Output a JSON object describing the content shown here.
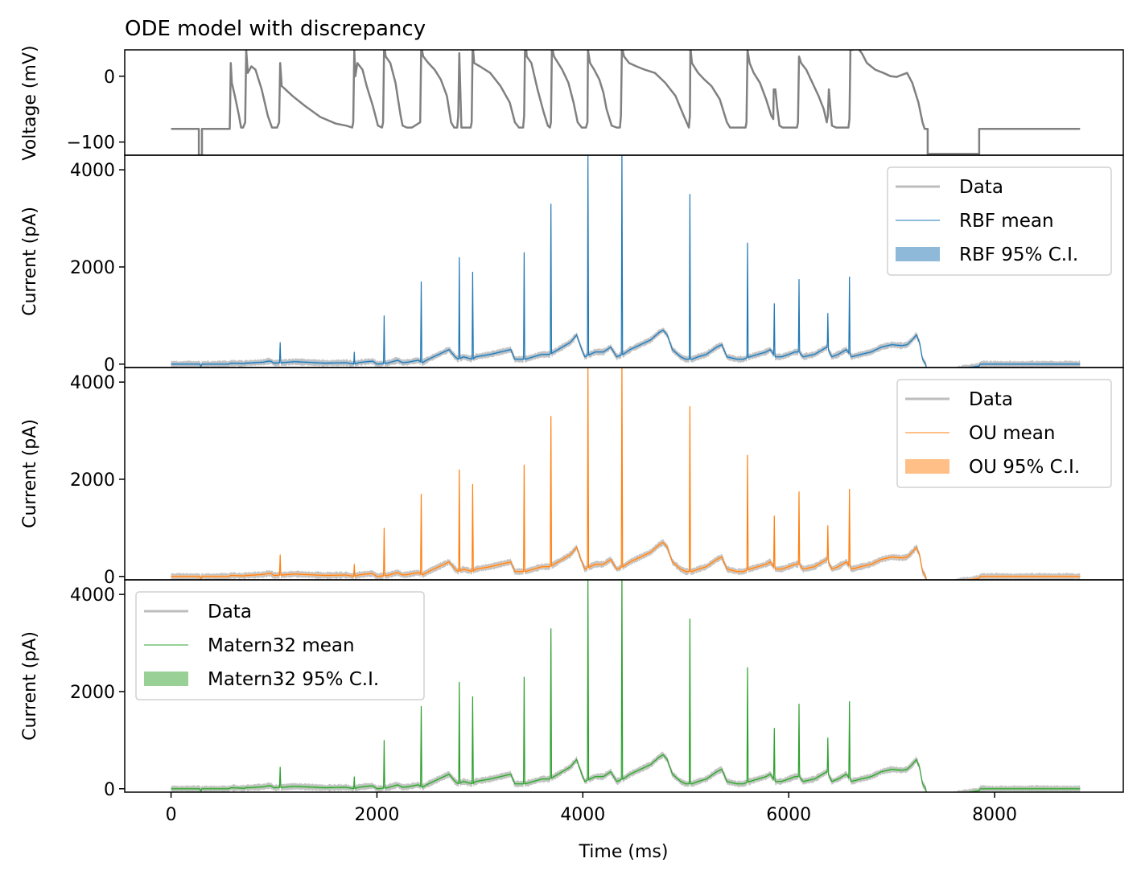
{
  "chart_data": [
    {
      "type": "line",
      "title": "ODE model with discrepancy",
      "xlabel": "",
      "ylabel": "Voltage (mV)",
      "xlim": [
        -450,
        9250
      ],
      "ylim": [
        -120,
        40
      ],
      "yticks": [
        0,
        -100
      ],
      "ytick_labels": [
        "0",
        "−100"
      ],
      "series": [
        {
          "color": "#808080",
          "points": [
            [
              0,
              -80
            ],
            [
              270,
              -80
            ],
            [
              270,
              -120
            ],
            [
              300,
              -120
            ],
            [
              300,
              -80
            ],
            [
              570,
              -80
            ],
            [
              575,
              -40
            ],
            [
              580,
              20
            ],
            [
              590,
              -10
            ],
            [
              620,
              -30
            ],
            [
              660,
              -60
            ],
            [
              680,
              -78
            ],
            [
              700,
              -78
            ],
            [
              720,
              -70
            ],
            [
              730,
              40
            ],
            [
              745,
              5
            ],
            [
              780,
              15
            ],
            [
              820,
              10
            ],
            [
              880,
              -20
            ],
            [
              940,
              -60
            ],
            [
              980,
              -78
            ],
            [
              1030,
              -78
            ],
            [
              1050,
              -70
            ],
            [
              1060,
              20
            ],
            [
              1075,
              -15
            ],
            [
              1110,
              -20
            ],
            [
              1180,
              -30
            ],
            [
              1300,
              -45
            ],
            [
              1450,
              -62
            ],
            [
              1600,
              -72
            ],
            [
              1700,
              -75
            ],
            [
              1760,
              -78
            ],
            [
              1770,
              -70
            ],
            [
              1780,
              40
            ],
            [
              1790,
              0
            ],
            [
              1810,
              20
            ],
            [
              1860,
              10
            ],
            [
              1900,
              -15
            ],
            [
              1960,
              -45
            ],
            [
              2010,
              -75
            ],
            [
              2050,
              -78
            ],
            [
              2060,
              -70
            ],
            [
              2070,
              50
            ],
            [
              2085,
              30
            ],
            [
              2130,
              20
            ],
            [
              2180,
              -10
            ],
            [
              2210,
              -40
            ],
            [
              2230,
              -60
            ],
            [
              2250,
              -75
            ],
            [
              2290,
              -78
            ],
            [
              2340,
              -78
            ],
            [
              2370,
              -75
            ],
            [
              2420,
              -70
            ],
            [
              2430,
              45
            ],
            [
              2450,
              30
            ],
            [
              2500,
              20
            ],
            [
              2560,
              10
            ],
            [
              2620,
              -5
            ],
            [
              2680,
              -30
            ],
            [
              2720,
              -70
            ],
            [
              2750,
              -78
            ],
            [
              2780,
              -78
            ],
            [
              2790,
              -60
            ],
            [
              2800,
              35
            ],
            [
              2820,
              -78
            ],
            [
              2910,
              -78
            ],
            [
              2920,
              -70
            ],
            [
              2930,
              50
            ],
            [
              2945,
              20
            ],
            [
              3000,
              15
            ],
            [
              3100,
              5
            ],
            [
              3200,
              -15
            ],
            [
              3290,
              -40
            ],
            [
              3340,
              -70
            ],
            [
              3380,
              -78
            ],
            [
              3420,
              -78
            ],
            [
              3430,
              -60
            ],
            [
              3440,
              68
            ],
            [
              3455,
              30
            ],
            [
              3500,
              20
            ],
            [
              3560,
              -20
            ],
            [
              3620,
              -55
            ],
            [
              3660,
              -75
            ],
            [
              3680,
              -78
            ],
            [
              3690,
              -70
            ],
            [
              3700,
              45
            ],
            [
              3720,
              30
            ],
            [
              3800,
              10
            ],
            [
              3860,
              -10
            ],
            [
              3910,
              -40
            ],
            [
              3950,
              -70
            ],
            [
              3990,
              -78
            ],
            [
              4030,
              -78
            ],
            [
              4045,
              -70
            ],
            [
              4050,
              40
            ],
            [
              4070,
              20
            ],
            [
              4110,
              10
            ],
            [
              4160,
              -5
            ],
            [
              4200,
              -25
            ],
            [
              4230,
              -50
            ],
            [
              4260,
              -65
            ],
            [
              4280,
              -75
            ],
            [
              4330,
              -78
            ],
            [
              4360,
              -78
            ],
            [
              4370,
              -60
            ],
            [
              4380,
              45
            ],
            [
              4400,
              30
            ],
            [
              4450,
              20
            ],
            [
              4520,
              15
            ],
            [
              4600,
              10
            ],
            [
              4700,
              5
            ],
            [
              4800,
              -10
            ],
            [
              4900,
              -30
            ],
            [
              4980,
              -60
            ],
            [
              5030,
              -78
            ],
            [
              5040,
              -60
            ],
            [
              5045,
              45
            ],
            [
              5060,
              20
            ],
            [
              5120,
              5
            ],
            [
              5180,
              -5
            ],
            [
              5250,
              -15
            ],
            [
              5330,
              -35
            ],
            [
              5400,
              -70
            ],
            [
              5430,
              -78
            ],
            [
              5580,
              -78
            ],
            [
              5590,
              -70
            ],
            [
              5600,
              40
            ],
            [
              5620,
              20
            ],
            [
              5660,
              5
            ],
            [
              5720,
              -10
            ],
            [
              5780,
              -35
            ],
            [
              5830,
              -60
            ],
            [
              5850,
              -65
            ],
            [
              5855,
              -20
            ],
            [
              5870,
              -20
            ],
            [
              5890,
              -50
            ],
            [
              5910,
              -75
            ],
            [
              5940,
              -78
            ],
            [
              6080,
              -78
            ],
            [
              6090,
              -70
            ],
            [
              6100,
              30
            ],
            [
              6120,
              20
            ],
            [
              6170,
              10
            ],
            [
              6230,
              -10
            ],
            [
              6290,
              -30
            ],
            [
              6340,
              -50
            ],
            [
              6370,
              -70
            ],
            [
              6380,
              -60
            ],
            [
              6390,
              -20
            ],
            [
              6400,
              -40
            ],
            [
              6420,
              -75
            ],
            [
              6460,
              -78
            ],
            [
              6580,
              -78
            ],
            [
              6590,
              -65
            ],
            [
              6600,
              50
            ],
            [
              6620,
              40
            ],
            [
              6660,
              45
            ],
            [
              6710,
              35
            ],
            [
              6760,
              20
            ],
            [
              6840,
              10
            ],
            [
              6920,
              5
            ],
            [
              6990,
              0
            ],
            [
              7050,
              -1
            ],
            [
              7100,
              2
            ],
            [
              7150,
              5
            ],
            [
              7200,
              -10
            ],
            [
              7260,
              -40
            ],
            [
              7300,
              -70
            ],
            [
              7320,
              -80
            ],
            [
              7350,
              -80
            ],
            [
              7350,
              -118
            ],
            [
              7850,
              -118
            ],
            [
              7850,
              -80
            ],
            [
              8830,
              -80
            ]
          ]
        }
      ]
    },
    {
      "type": "line",
      "xlabel": "",
      "ylabel": "Current (pA)",
      "xlim": [
        -450,
        9250
      ],
      "ylim": [
        -70,
        4300
      ],
      "yticks": [
        0,
        2000,
        4000
      ],
      "ytick_labels": [
        "0",
        "2000",
        "4000"
      ],
      "legend_position": "upper-right",
      "series": [
        {
          "name": "Data",
          "color": "#bdbdbd"
        },
        {
          "name": "RBF mean",
          "color": "#1f77b4"
        },
        {
          "name": "RBF 95% C.I.",
          "color": "#8fb9d9"
        }
      ]
    },
    {
      "type": "line",
      "xlabel": "",
      "ylabel": "Current (pA)",
      "xlim": [
        -450,
        9250
      ],
      "ylim": [
        -70,
        4300
      ],
      "yticks": [
        0,
        2000,
        4000
      ],
      "ytick_labels": [
        "0",
        "2000",
        "4000"
      ],
      "legend_position": "upper-right",
      "series": [
        {
          "name": "Data",
          "color": "#bdbdbd"
        },
        {
          "name": "OU mean",
          "color": "#ff7f0e"
        },
        {
          "name": "OU 95% C.I.",
          "color": "#ffbf86"
        }
      ]
    },
    {
      "type": "line",
      "xlabel": "Time (ms)",
      "ylabel": "Current (pA)",
      "xlim": [
        -450,
        9250
      ],
      "ylim": [
        -70,
        4300
      ],
      "yticks": [
        0,
        2000,
        4000
      ],
      "ytick_labels": [
        "0",
        "2000",
        "4000"
      ],
      "xticks": [
        0,
        2000,
        4000,
        6000,
        8000
      ],
      "xtick_labels": [
        "0",
        "2000",
        "4000",
        "6000",
        "8000"
      ],
      "legend_position": "upper-left",
      "series": [
        {
          "name": "Data",
          "color": "#bdbdbd"
        },
        {
          "name": "Matern32 mean",
          "color": "#2ca02c"
        },
        {
          "name": "Matern32 95% C.I.",
          "color": "#98d095"
        }
      ]
    }
  ],
  "current_trace": {
    "baseline": [
      [
        0,
        0
      ],
      [
        280,
        0
      ],
      [
        290,
        -50
      ],
      [
        300,
        0
      ],
      [
        560,
        0
      ],
      [
        580,
        20
      ],
      [
        720,
        10
      ],
      [
        730,
        30
      ],
      [
        740,
        20
      ],
      [
        900,
        40
      ],
      [
        940,
        60
      ],
      [
        970,
        60
      ],
      [
        1000,
        20
      ],
      [
        1080,
        30
      ],
      [
        1200,
        50
      ],
      [
        1300,
        40
      ],
      [
        1500,
        20
      ],
      [
        1700,
        30
      ],
      [
        1780,
        0
      ],
      [
        1820,
        30
      ],
      [
        1900,
        50
      ],
      [
        1960,
        60
      ],
      [
        2000,
        0
      ],
      [
        2100,
        20
      ],
      [
        2200,
        80
      ],
      [
        2250,
        30
      ],
      [
        2300,
        40
      ],
      [
        2400,
        80
      ],
      [
        2440,
        30
      ],
      [
        2500,
        100
      ],
      [
        2600,
        200
      ],
      [
        2700,
        300
      ],
      [
        2760,
        150
      ],
      [
        2790,
        100
      ],
      [
        2840,
        150
      ],
      [
        2930,
        100
      ],
      [
        2960,
        150
      ],
      [
        3100,
        200
      ],
      [
        3200,
        250
      ],
      [
        3300,
        300
      ],
      [
        3340,
        100
      ],
      [
        3440,
        100
      ],
      [
        3520,
        150
      ],
      [
        3600,
        200
      ],
      [
        3680,
        200
      ],
      [
        3720,
        250
      ],
      [
        3800,
        350
      ],
      [
        3880,
        450
      ],
      [
        3940,
        600
      ],
      [
        3990,
        300
      ],
      [
        4020,
        150
      ],
      [
        4070,
        200
      ],
      [
        4120,
        250
      ],
      [
        4200,
        250
      ],
      [
        4270,
        350
      ],
      [
        4330,
        150
      ],
      [
        4390,
        200
      ],
      [
        4460,
        300
      ],
      [
        4560,
        400
      ],
      [
        4660,
        500
      ],
      [
        4740,
        650
      ],
      [
        4780,
        700
      ],
      [
        4820,
        600
      ],
      [
        4870,
        300
      ],
      [
        4950,
        150
      ],
      [
        5000,
        100
      ],
      [
        5060,
        100
      ],
      [
        5120,
        150
      ],
      [
        5200,
        200
      ],
      [
        5300,
        350
      ],
      [
        5350,
        400
      ],
      [
        5400,
        150
      ],
      [
        5500,
        100
      ],
      [
        5560,
        100
      ],
      [
        5620,
        150
      ],
      [
        5700,
        200
      ],
      [
        5780,
        250
      ],
      [
        5820,
        300
      ],
      [
        5870,
        150
      ],
      [
        5930,
        150
      ],
      [
        6000,
        200
      ],
      [
        6060,
        250
      ],
      [
        6100,
        250
      ],
      [
        6140,
        150
      ],
      [
        6250,
        200
      ],
      [
        6330,
        300
      ],
      [
        6370,
        350
      ],
      [
        6420,
        150
      ],
      [
        6480,
        200
      ],
      [
        6560,
        300
      ],
      [
        6610,
        150
      ],
      [
        6700,
        200
      ],
      [
        6800,
        250
      ],
      [
        6900,
        350
      ],
      [
        7000,
        400
      ],
      [
        7100,
        380
      ],
      [
        7150,
        400
      ],
      [
        7200,
        500
      ],
      [
        7240,
        600
      ],
      [
        7270,
        450
      ],
      [
        7300,
        100
      ],
      [
        7330,
        0
      ],
      [
        7350,
        -200
      ],
      [
        7380,
        -500
      ],
      [
        7420,
        -300
      ],
      [
        7500,
        -200
      ],
      [
        7650,
        -100
      ],
      [
        7850,
        -40
      ],
      [
        7860,
        0
      ],
      [
        8830,
        0
      ]
    ],
    "spikes": [
      [
        1060,
        450
      ],
      [
        1780,
        250
      ],
      [
        2070,
        1000
      ],
      [
        2430,
        1700
      ],
      [
        2800,
        2200
      ],
      [
        2930,
        1900
      ],
      [
        3430,
        2300
      ],
      [
        3690,
        3300
      ],
      [
        4050,
        4300
      ],
      [
        4380,
        4500
      ],
      [
        5040,
        3500
      ],
      [
        5600,
        2500
      ],
      [
        5860,
        1250
      ],
      [
        6100,
        1750
      ],
      [
        6380,
        1050
      ],
      [
        6590,
        1800
      ]
    ]
  }
}
